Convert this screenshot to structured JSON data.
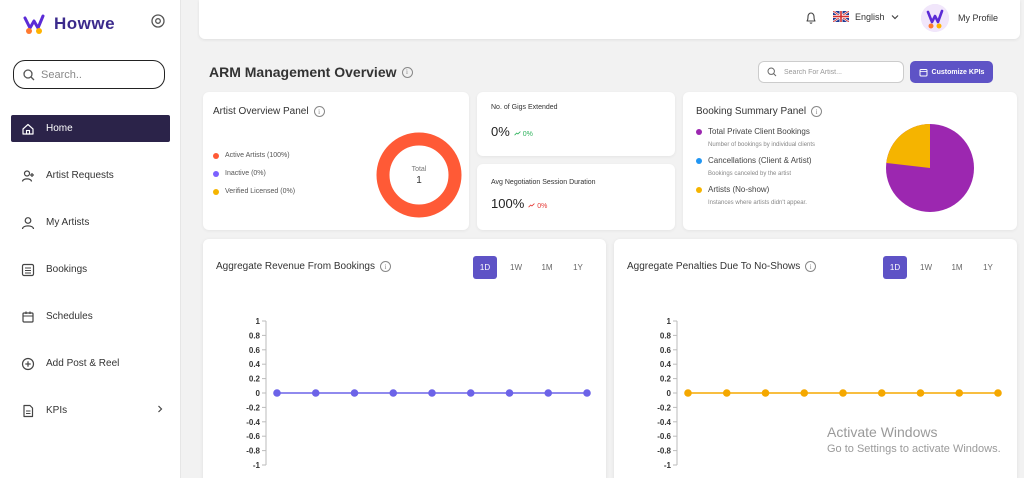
{
  "app": {
    "name": "Howwe"
  },
  "sidebar": {
    "search_placeholder": "Search..",
    "items": [
      {
        "label": "Home",
        "icon": "home-icon",
        "active": true
      },
      {
        "label": "Artist Requests",
        "icon": "user-plus-icon"
      },
      {
        "label": "My Artists",
        "icon": "user-icon"
      },
      {
        "label": "Bookings",
        "icon": "list-icon"
      },
      {
        "label": "Schedules",
        "icon": "calendar-icon"
      },
      {
        "label": "Add Post & Reel",
        "icon": "plus-circle-icon"
      },
      {
        "label": "KPIs",
        "icon": "document-icon",
        "has_submenu": true
      }
    ]
  },
  "topbar": {
    "language": "English",
    "profile_label": "My Profile"
  },
  "header": {
    "title": "ARM Management Overview",
    "search_placeholder": "Search For Artist...",
    "customize_button": "Customize KPIs"
  },
  "artist_overview": {
    "title": "Artist Overview Panel",
    "legend": [
      {
        "label": "Active Artists (100%)",
        "color": "#ff5a36"
      },
      {
        "label": "Inactive (0%)",
        "color": "#7b61ff"
      },
      {
        "label": "Verified Licensed (0%)",
        "color": "#f5b400"
      }
    ],
    "donut_label": "Total",
    "donut_value": "1"
  },
  "kpis": [
    {
      "label": "No. of Gigs Extended",
      "value": "0%",
      "delta": "0%",
      "trend": "up",
      "color": "#2fb35d"
    },
    {
      "label": "Avg Negotiation Session Duration",
      "value": "100%",
      "delta": "0%",
      "trend": "down",
      "color": "#e53935"
    }
  ],
  "booking_summary": {
    "title": "Booking Summary Panel",
    "items": [
      {
        "label": "Total Private Client Bookings",
        "sub": "Number of bookings by individual clients",
        "color": "#9c27b0"
      },
      {
        "label": "Cancellations (Client & Artist)",
        "sub": "Bookings canceled by the artist",
        "color": "#2196f3"
      },
      {
        "label": "Artists (No-show)",
        "sub": "Instances where artists didn't appear.",
        "color": "#f5b400"
      }
    ]
  },
  "chart_data": [
    {
      "type": "line",
      "title": "Aggregate Revenue From Bookings",
      "ranges": [
        "1D",
        "1W",
        "1M",
        "1Y"
      ],
      "active_range": "1D",
      "color": "#6c63e8",
      "y_ticks": [
        "1",
        "0.8",
        "0.6",
        "0.4",
        "0.2",
        "0",
        "-0.2",
        "-0.4",
        "-0.6",
        "-0.8",
        "-1"
      ],
      "ylim": [
        -1,
        1
      ],
      "values": [
        0,
        0,
        0,
        0,
        0,
        0,
        0,
        0,
        0
      ]
    },
    {
      "type": "line",
      "title": "Aggregate Penalties Due To No-Shows",
      "ranges": [
        "1D",
        "1W",
        "1M",
        "1Y"
      ],
      "active_range": "1D",
      "color": "#f5a800",
      "y_ticks": [
        "1",
        "0.8",
        "0.6",
        "0.4",
        "0.2",
        "0",
        "-0.2",
        "-0.4",
        "-0.6",
        "-0.8",
        "-1"
      ],
      "ylim": [
        -1,
        1
      ],
      "values": [
        0,
        0,
        0,
        0,
        0,
        0,
        0,
        0,
        0
      ]
    }
  ],
  "watermark": {
    "line1": "Activate Windows",
    "line2": "Go to Settings to activate Windows."
  }
}
